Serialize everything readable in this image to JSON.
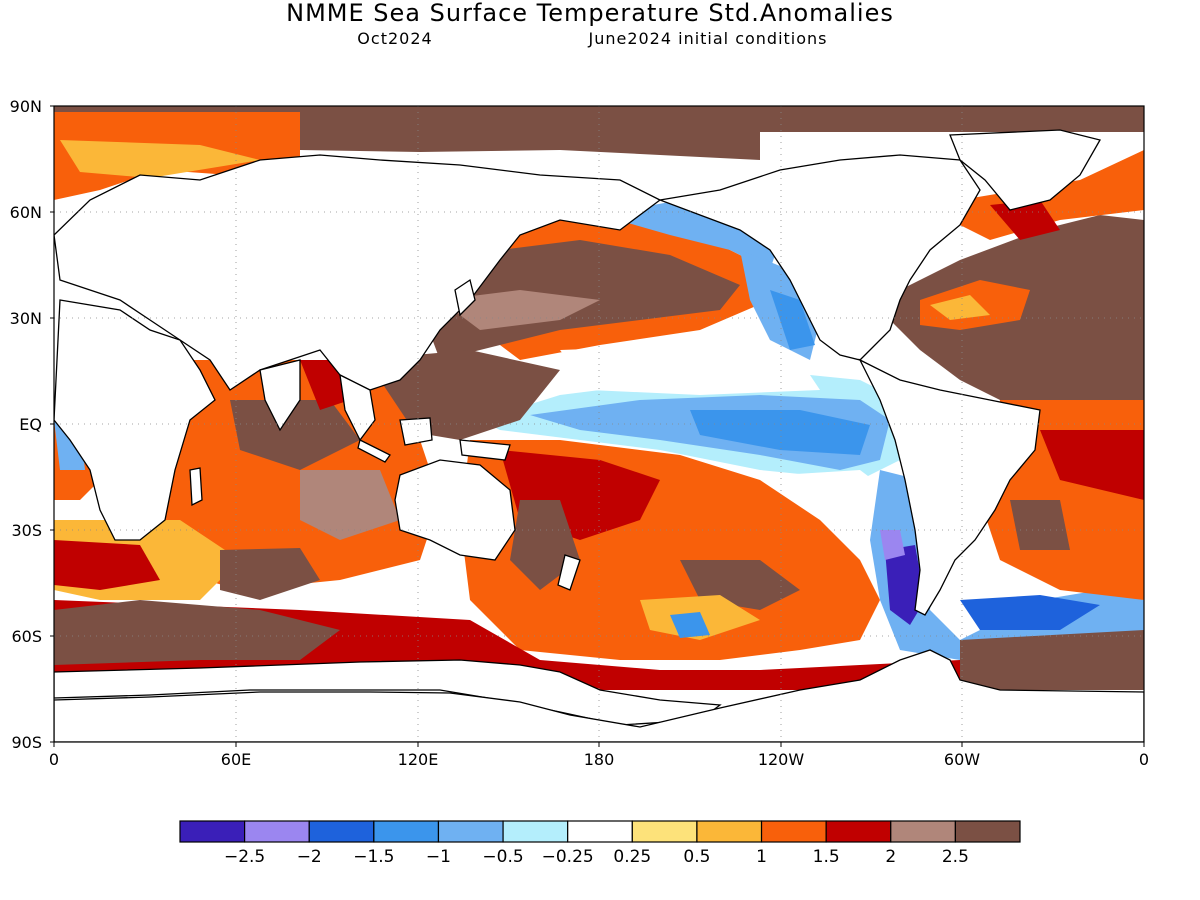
{
  "title": "NMME Sea Surface Temperature Std.Anomalies",
  "subtitle_left": "Oct2024",
  "subtitle_right": "June2024 initial conditions",
  "map": {
    "lat_labels": [
      "90N",
      "60N",
      "30N",
      "EQ",
      "30S",
      "60S",
      "90S"
    ],
    "lon_labels": [
      "0",
      "60E",
      "120E",
      "180",
      "120W",
      "60W",
      "0"
    ],
    "land_color": "#ffffff",
    "grid": "dotted"
  },
  "colorbar": {
    "labels": [
      "−2.5",
      "−2",
      "−1.5",
      "−1",
      "−0.5",
      "−0.25",
      "0.25",
      "0.5",
      "1",
      "1.5",
      "2",
      "2.5"
    ],
    "colors": [
      "#3a1fb8",
      "#9b86f0",
      "#1e62dc",
      "#3b95ec",
      "#6fb1f2",
      "#b4eefc",
      "#ffffff",
      "#fde27a",
      "#fbb738",
      "#f8600b",
      "#c00000",
      "#b0867a",
      "#7b5044"
    ]
  }
}
